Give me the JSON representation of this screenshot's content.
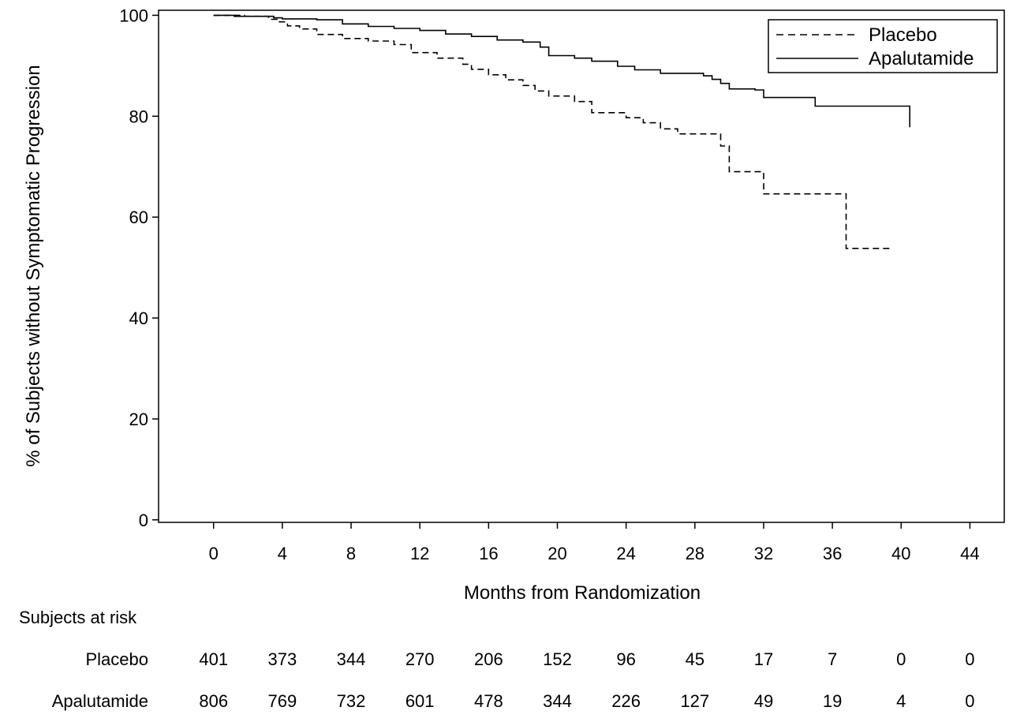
{
  "chart_data": {
    "type": "line",
    "xlabel": "Months from Randomization",
    "ylabel": "% of Subjects without Symptomatic Progression",
    "xlim": [
      -3.2,
      46
    ],
    "ylim": [
      -0.5,
      101
    ],
    "xticks": [
      0,
      4,
      8,
      12,
      16,
      20,
      24,
      28,
      32,
      36,
      40,
      44
    ],
    "yticks": [
      0,
      20,
      40,
      60,
      80,
      100
    ],
    "legend": "top-right",
    "grid": false,
    "series": [
      {
        "name": "Placebo",
        "line_style": "dashed",
        "color": "#000000",
        "x": [
          0,
          1.8,
          3.2,
          3.7,
          4.3,
          5,
          6,
          7.5,
          9,
          10.5,
          11.5,
          13,
          14.5,
          15,
          16,
          17,
          18,
          18.7,
          19.5,
          21,
          22,
          24,
          25,
          26,
          27,
          29.5,
          30,
          32,
          36.8,
          39.5
        ],
        "y": [
          100,
          99.8,
          99.2,
          98.7,
          97.9,
          97.3,
          96.2,
          95.4,
          94.9,
          94.2,
          92.6,
          91.5,
          90.3,
          89.3,
          88.2,
          87.2,
          86.1,
          85.0,
          84.0,
          82.9,
          80.7,
          79.7,
          78.7,
          77.5,
          76.5,
          74.1,
          69.0,
          64.6,
          53.8,
          53.8
        ]
      },
      {
        "name": "Apalutamide",
        "line_style": "solid",
        "color": "#000000",
        "x": [
          0,
          1.2,
          3.5,
          4,
          6,
          7.5,
          9,
          10.5,
          12,
          13.5,
          15,
          16.5,
          18,
          19,
          19.5,
          21,
          22,
          23.5,
          24.5,
          26,
          28.5,
          29,
          29.5,
          30,
          31.5,
          32,
          35,
          40.5
        ],
        "y": [
          100,
          99.8,
          99.5,
          99.3,
          99.1,
          98.3,
          97.8,
          97.4,
          97.0,
          96.3,
          95.8,
          95.1,
          94.7,
          93.7,
          92.0,
          91.5,
          90.9,
          89.9,
          89.2,
          88.5,
          88.0,
          87.3,
          86.5,
          85.4,
          85.2,
          83.7,
          82.0,
          77.8
        ]
      }
    ],
    "risk_table": {
      "title": "Subjects at risk",
      "times": [
        0,
        4,
        8,
        12,
        16,
        20,
        24,
        28,
        32,
        36,
        40,
        44
      ],
      "rows": [
        {
          "label": "Placebo",
          "values": [
            "401",
            "373",
            "344",
            "270",
            "206",
            "152",
            "96",
            "45",
            "17",
            "7",
            "0",
            "0"
          ]
        },
        {
          "label": "Apalutamide",
          "values": [
            "806",
            "769",
            "732",
            "601",
            "478",
            "344",
            "226",
            "127",
            "49",
            "19",
            "4",
            "0"
          ]
        }
      ]
    }
  }
}
